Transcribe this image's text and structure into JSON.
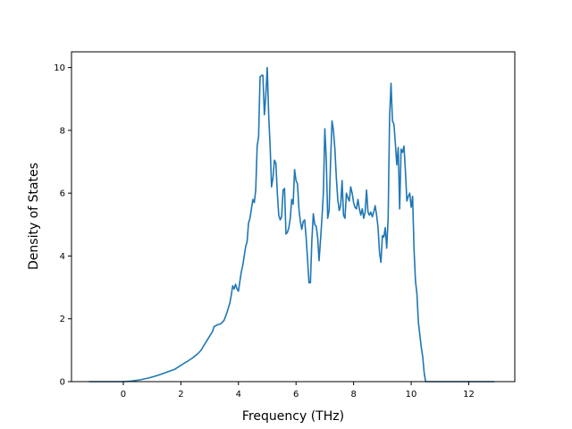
{
  "chart_data": {
    "type": "line",
    "xlabel": "Frequency (THz)",
    "ylabel": "Density of States",
    "xlim": [
      -1.8,
      13.6
    ],
    "ylim": [
      0,
      10.5
    ],
    "x_ticks": [
      0,
      2,
      4,
      6,
      8,
      10,
      12
    ],
    "y_ticks": [
      0,
      2,
      4,
      6,
      8,
      10
    ],
    "x_tick_labels": [
      "0",
      "2",
      "4",
      "6",
      "8",
      "10",
      "12"
    ],
    "y_tick_labels": [
      "0",
      "2",
      "4",
      "6",
      "8",
      "10"
    ],
    "grid": false,
    "legend": "none",
    "series": [
      {
        "color": "#1f77b4",
        "points": [
          [
            -1.2,
            0.0
          ],
          [
            -0.5,
            0.0
          ],
          [
            0.0,
            0.0
          ],
          [
            0.3,
            0.02
          ],
          [
            0.6,
            0.06
          ],
          [
            0.9,
            0.12
          ],
          [
            1.2,
            0.2
          ],
          [
            1.5,
            0.3
          ],
          [
            1.8,
            0.4
          ],
          [
            2.0,
            0.52
          ],
          [
            2.2,
            0.63
          ],
          [
            2.4,
            0.75
          ],
          [
            2.6,
            0.9
          ],
          [
            2.7,
            1.0
          ],
          [
            2.8,
            1.15
          ],
          [
            2.9,
            1.3
          ],
          [
            3.0,
            1.45
          ],
          [
            3.1,
            1.6
          ],
          [
            3.15,
            1.75
          ],
          [
            3.25,
            1.8
          ],
          [
            3.4,
            1.85
          ],
          [
            3.5,
            1.95
          ],
          [
            3.6,
            2.2
          ],
          [
            3.7,
            2.5
          ],
          [
            3.75,
            2.75
          ],
          [
            3.8,
            3.05
          ],
          [
            3.85,
            2.95
          ],
          [
            3.9,
            3.1
          ],
          [
            3.95,
            2.95
          ],
          [
            4.0,
            2.88
          ],
          [
            4.05,
            3.2
          ],
          [
            4.1,
            3.5
          ],
          [
            4.15,
            3.7
          ],
          [
            4.2,
            4.0
          ],
          [
            4.25,
            4.3
          ],
          [
            4.3,
            4.45
          ],
          [
            4.35,
            5.05
          ],
          [
            4.4,
            5.2
          ],
          [
            4.45,
            5.5
          ],
          [
            4.5,
            5.8
          ],
          [
            4.55,
            5.7
          ],
          [
            4.6,
            6.1
          ],
          [
            4.65,
            7.5
          ],
          [
            4.7,
            7.8
          ],
          [
            4.75,
            9.7
          ],
          [
            4.8,
            9.75
          ],
          [
            4.85,
            9.75
          ],
          [
            4.9,
            8.5
          ],
          [
            4.95,
            9.1
          ],
          [
            5.0,
            10.0
          ],
          [
            5.05,
            8.5
          ],
          [
            5.1,
            7.5
          ],
          [
            5.15,
            6.2
          ],
          [
            5.2,
            6.5
          ],
          [
            5.25,
            7.05
          ],
          [
            5.3,
            6.95
          ],
          [
            5.35,
            6.0
          ],
          [
            5.4,
            5.3
          ],
          [
            5.45,
            5.15
          ],
          [
            5.5,
            5.25
          ],
          [
            5.55,
            6.1
          ],
          [
            5.6,
            6.15
          ],
          [
            5.65,
            4.7
          ],
          [
            5.7,
            4.75
          ],
          [
            5.75,
            4.9
          ],
          [
            5.8,
            5.2
          ],
          [
            5.85,
            5.8
          ],
          [
            5.9,
            5.65
          ],
          [
            5.95,
            6.75
          ],
          [
            6.0,
            6.4
          ],
          [
            6.05,
            6.3
          ],
          [
            6.1,
            5.5
          ],
          [
            6.15,
            5.1
          ],
          [
            6.2,
            4.85
          ],
          [
            6.25,
            5.1
          ],
          [
            6.3,
            5.15
          ],
          [
            6.35,
            4.6
          ],
          [
            6.4,
            3.9
          ],
          [
            6.45,
            3.15
          ],
          [
            6.5,
            3.15
          ],
          [
            6.55,
            4.5
          ],
          [
            6.6,
            5.35
          ],
          [
            6.65,
            5.0
          ],
          [
            6.7,
            4.95
          ],
          [
            6.75,
            4.6
          ],
          [
            6.8,
            3.85
          ],
          [
            6.85,
            4.5
          ],
          [
            6.9,
            5.2
          ],
          [
            6.95,
            6.0
          ],
          [
            7.0,
            8.05
          ],
          [
            7.05,
            7.1
          ],
          [
            7.1,
            5.2
          ],
          [
            7.15,
            5.45
          ],
          [
            7.2,
            7.0
          ],
          [
            7.25,
            8.3
          ],
          [
            7.3,
            8.0
          ],
          [
            7.35,
            7.4
          ],
          [
            7.4,
            6.5
          ],
          [
            7.45,
            5.8
          ],
          [
            7.5,
            5.45
          ],
          [
            7.55,
            5.6
          ],
          [
            7.6,
            6.4
          ],
          [
            7.65,
            5.3
          ],
          [
            7.7,
            5.2
          ],
          [
            7.75,
            6.0
          ],
          [
            7.8,
            5.85
          ],
          [
            7.85,
            5.75
          ],
          [
            7.9,
            6.2
          ],
          [
            7.95,
            6.0
          ],
          [
            8.0,
            5.7
          ],
          [
            8.05,
            5.55
          ],
          [
            8.1,
            5.5
          ],
          [
            8.15,
            5.8
          ],
          [
            8.2,
            5.5
          ],
          [
            8.25,
            5.3
          ],
          [
            8.3,
            5.5
          ],
          [
            8.35,
            5.2
          ],
          [
            8.4,
            5.4
          ],
          [
            8.45,
            6.1
          ],
          [
            8.5,
            5.4
          ],
          [
            8.55,
            5.3
          ],
          [
            8.6,
            5.4
          ],
          [
            8.65,
            5.25
          ],
          [
            8.7,
            5.4
          ],
          [
            8.75,
            5.6
          ],
          [
            8.8,
            5.3
          ],
          [
            8.85,
            4.9
          ],
          [
            8.9,
            4.1
          ],
          [
            8.95,
            3.8
          ],
          [
            9.0,
            4.65
          ],
          [
            9.05,
            4.6
          ],
          [
            9.1,
            4.9
          ],
          [
            9.15,
            4.25
          ],
          [
            9.2,
            5.2
          ],
          [
            9.25,
            8.4
          ],
          [
            9.3,
            9.5
          ],
          [
            9.35,
            8.3
          ],
          [
            9.4,
            8.2
          ],
          [
            9.45,
            7.6
          ],
          [
            9.5,
            6.9
          ],
          [
            9.55,
            7.45
          ],
          [
            9.6,
            5.5
          ],
          [
            9.65,
            7.4
          ],
          [
            9.7,
            7.3
          ],
          [
            9.75,
            7.5
          ],
          [
            9.8,
            6.7
          ],
          [
            9.85,
            5.75
          ],
          [
            9.9,
            5.9
          ],
          [
            9.95,
            6.0
          ],
          [
            10.0,
            5.55
          ],
          [
            10.05,
            5.9
          ],
          [
            10.1,
            4.2
          ],
          [
            10.15,
            3.2
          ],
          [
            10.2,
            2.8
          ],
          [
            10.25,
            1.9
          ],
          [
            10.3,
            1.5
          ],
          [
            10.35,
            1.1
          ],
          [
            10.4,
            0.8
          ],
          [
            10.45,
            0.3
          ],
          [
            10.5,
            0.0
          ],
          [
            10.6,
            0.0
          ],
          [
            11.0,
            0.0
          ],
          [
            11.5,
            0.0
          ],
          [
            12.0,
            0.0
          ],
          [
            12.9,
            0.0
          ]
        ]
      }
    ]
  }
}
